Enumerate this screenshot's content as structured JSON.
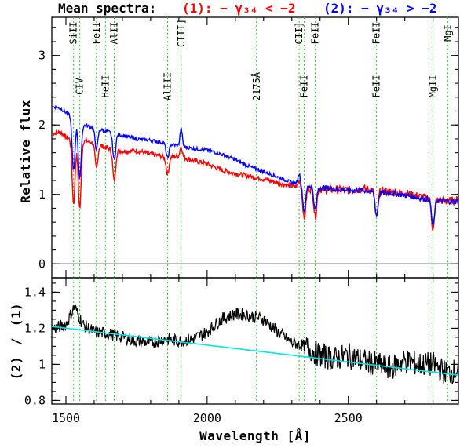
{
  "chart_data": [
    {
      "type": "line",
      "title": "Mean spectra:",
      "legend": [
        {
          "text": "(1): − γ₃₄ < −2",
          "color": "#ff0000"
        },
        {
          "text": "(2): − γ₃₄ > −2",
          "color": "#0000ff"
        }
      ],
      "ylabel": "Relative flux",
      "xlim": [
        1450,
        2890
      ],
      "ylim": [
        -0.2,
        3.55
      ],
      "yticks": [
        "0",
        "1",
        "2",
        "3"
      ],
      "series": [
        {
          "name": "(1)",
          "color": "#ff0000",
          "x": [
            1460,
            1480,
            1500,
            1520,
            1540,
            1560,
            1600,
            1650,
            1700,
            1750,
            1800,
            1850,
            1900,
            1950,
            2000,
            2050,
            2100,
            2150,
            2200,
            2250,
            2300,
            2350,
            2400,
            2450,
            2500,
            2550,
            2600,
            2650,
            2700,
            2750,
            2800,
            2850,
            2890
          ],
          "y": [
            1.88,
            1.9,
            1.82,
            1.8,
            1.72,
            1.78,
            1.74,
            1.66,
            1.62,
            1.63,
            1.58,
            1.54,
            1.55,
            1.49,
            1.44,
            1.35,
            1.3,
            1.26,
            1.22,
            1.17,
            1.12,
            1.09,
            1.08,
            1.07,
            1.06,
            1.08,
            1.06,
            1.03,
            1.02,
            0.97,
            0.93,
            0.9,
            0.92
          ]
        },
        {
          "name": "(2)",
          "color": "#0000ff",
          "x": [
            1460,
            1480,
            1500,
            1520,
            1540,
            1560,
            1600,
            1650,
            1700,
            1750,
            1800,
            1850,
            1900,
            1950,
            2000,
            2050,
            2100,
            2150,
            2200,
            2250,
            2300,
            2350,
            2400,
            2450,
            2500,
            2550,
            2600,
            2650,
            2700,
            2750,
            2800,
            2850,
            2890
          ],
          "y": [
            2.26,
            2.24,
            2.18,
            2.12,
            2.05,
            2.0,
            1.96,
            1.9,
            1.85,
            1.8,
            1.78,
            1.74,
            1.7,
            1.66,
            1.64,
            1.58,
            1.5,
            1.4,
            1.33,
            1.25,
            1.17,
            1.13,
            1.1,
            1.08,
            1.06,
            1.06,
            1.03,
            1.02,
            0.99,
            0.95,
            0.92,
            0.9,
            0.9
          ]
        }
      ],
      "absorption_features": [
        {
          "x": 1527,
          "depth": 0.9
        },
        {
          "x": 1549,
          "depth": 0.95
        },
        {
          "x": 1608,
          "depth": 0.35
        },
        {
          "x": 1671,
          "depth": 0.45
        },
        {
          "x": 1860,
          "depth": 0.25
        },
        {
          "x": 2344,
          "depth": 0.45
        },
        {
          "x": 2383,
          "depth": 0.4
        },
        {
          "x": 2600,
          "depth": 0.4
        },
        {
          "x": 2800,
          "depth": 0.45
        }
      ],
      "emission_features": [
        {
          "x": 1908,
          "height": 0.25
        },
        {
          "x": 2326,
          "height": 0.15
        }
      ],
      "line_markers": [
        {
          "x": 1527,
          "label": "SiII",
          "row": "top"
        },
        {
          "x": 1549,
          "label": "CIV",
          "row": "low"
        },
        {
          "x": 1608,
          "label": "FeII",
          "row": "top"
        },
        {
          "x": 1640,
          "label": "HeII",
          "row": "low"
        },
        {
          "x": 1671,
          "label": "AlII",
          "row": "top"
        },
        {
          "x": 1860,
          "label": "AlIII",
          "row": "low"
        },
        {
          "x": 1908,
          "label": "CIII]",
          "row": "top"
        },
        {
          "x": 2175,
          "label": "2175Å",
          "row": "low"
        },
        {
          "x": 2326,
          "label": "CII]",
          "row": "top"
        },
        {
          "x": 2344,
          "label": "FeII",
          "row": "low"
        },
        {
          "x": 2383,
          "label": "FeII",
          "row": "top"
        },
        {
          "x": 2600,
          "label": "FeII",
          "row": "top"
        },
        {
          "x": 2600,
          "label": "FeII",
          "row": "low"
        },
        {
          "x": 2800,
          "label": "MgII",
          "row": "low"
        },
        {
          "x": 2852,
          "label": "MgI",
          "row": "top"
        }
      ]
    },
    {
      "type": "line",
      "xlabel": "Wavelength [Å]",
      "ylabel_parts": [
        {
          "text": "(2)",
          "color": "#0000ff"
        },
        {
          "text": "/",
          "color": "#000000"
        },
        {
          "text": "(1)",
          "color": "#ff0000"
        }
      ],
      "xlim": [
        1450,
        2890
      ],
      "ylim": [
        0.78,
        1.48
      ],
      "xticks": [
        "1500",
        "2000",
        "2500"
      ],
      "yticks": [
        "0.8",
        "1",
        "1.2",
        "1.4"
      ],
      "series": [
        {
          "name": "(2) / (1)",
          "color": "#000000",
          "x": [
            1460,
            1500,
            1530,
            1560,
            1600,
            1650,
            1700,
            1750,
            1800,
            1850,
            1900,
            1950,
            2000,
            2050,
            2100,
            2150,
            2200,
            2250,
            2300,
            2350,
            2400,
            2450,
            2500,
            2550,
            2600,
            2650,
            2700,
            2750,
            2800,
            2850,
            2890
          ],
          "y": [
            1.2,
            1.22,
            1.32,
            1.22,
            1.18,
            1.17,
            1.15,
            1.13,
            1.12,
            1.14,
            1.13,
            1.14,
            1.18,
            1.25,
            1.28,
            1.27,
            1.25,
            1.18,
            1.12,
            1.1,
            1.05,
            1.03,
            1.05,
            1.02,
            1.0,
            0.98,
            1.02,
            1.0,
            1.0,
            0.95,
            0.97
          ]
        },
        {
          "name": "fit",
          "color": "#00e5e5",
          "x": [
            1450,
            2890
          ],
          "y": [
            1.21,
            0.94
          ]
        }
      ]
    }
  ]
}
